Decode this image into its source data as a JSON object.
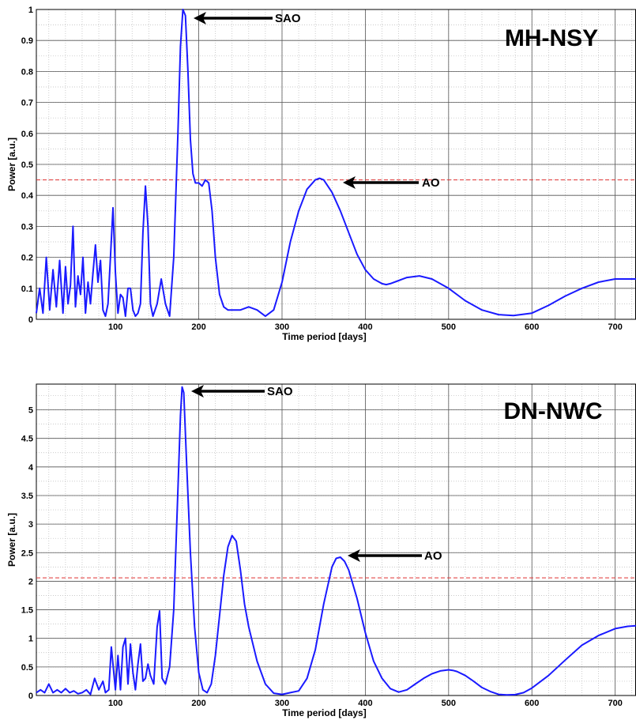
{
  "chart_data": [
    {
      "type": "line",
      "title": "MH-NSY",
      "xlabel": "Time period [days]",
      "ylabel": "Power [a.u.]",
      "xlim": [
        5,
        725
      ],
      "ylim": [
        0,
        1
      ],
      "xticks": [
        100,
        200,
        300,
        400,
        500,
        600,
        700
      ],
      "yticks": [
        0,
        0.1,
        0.2,
        0.3,
        0.4,
        0.5,
        0.6,
        0.7,
        0.8,
        0.9,
        1
      ],
      "ytick_labels": [
        "0",
        "0.1",
        "0.2",
        "0.3",
        "0.4",
        "0.5",
        "0.6",
        "0.7",
        "0.8",
        "0.9",
        "1"
      ],
      "grid": true,
      "threshold": 0.45,
      "colors": {
        "series": "#1a1aff",
        "threshold": "#e03030"
      },
      "series": [
        {
          "x": [
            5,
            9,
            13,
            17,
            21,
            25,
            29,
            33,
            37,
            40,
            43,
            46,
            49,
            52,
            55,
            58,
            61,
            64,
            67,
            70,
            73,
            76,
            79,
            82,
            85,
            88,
            91,
            94,
            97,
            100,
            103,
            106,
            109,
            112,
            115,
            118,
            121,
            124,
            127,
            130,
            133,
            136,
            139,
            142,
            145,
            150,
            155,
            160,
            165,
            170,
            175,
            178,
            181,
            184,
            187,
            190,
            193,
            196,
            200,
            204,
            208,
            212,
            216,
            220,
            225,
            230,
            235,
            240,
            245,
            250,
            260,
            270,
            280,
            290,
            300,
            310,
            320,
            330,
            340,
            345,
            350,
            360,
            370,
            380,
            390,
            400,
            410,
            420,
            425,
            430,
            440,
            450,
            465,
            480,
            500,
            520,
            540,
            560,
            578,
            600,
            620,
            640,
            660,
            680,
            700,
            725
          ],
          "y": [
            0.02,
            0.1,
            0.02,
            0.2,
            0.03,
            0.16,
            0.04,
            0.19,
            0.02,
            0.17,
            0.05,
            0.11,
            0.3,
            0.04,
            0.14,
            0.08,
            0.2,
            0.02,
            0.12,
            0.05,
            0.15,
            0.24,
            0.12,
            0.19,
            0.03,
            0.01,
            0.05,
            0.2,
            0.36,
            0.15,
            0.02,
            0.08,
            0.07,
            0.01,
            0.1,
            0.1,
            0.03,
            0.01,
            0.02,
            0.05,
            0.28,
            0.43,
            0.3,
            0.05,
            0.01,
            0.05,
            0.13,
            0.05,
            0.01,
            0.2,
            0.6,
            0.88,
            1.0,
            0.98,
            0.8,
            0.58,
            0.47,
            0.44,
            0.44,
            0.43,
            0.45,
            0.44,
            0.35,
            0.2,
            0.08,
            0.04,
            0.03,
            0.03,
            0.03,
            0.03,
            0.04,
            0.03,
            0.01,
            0.03,
            0.12,
            0.25,
            0.35,
            0.42,
            0.45,
            0.455,
            0.45,
            0.41,
            0.35,
            0.28,
            0.21,
            0.16,
            0.13,
            0.115,
            0.112,
            0.115,
            0.125,
            0.135,
            0.14,
            0.13,
            0.1,
            0.06,
            0.03,
            0.015,
            0.012,
            0.02,
            0.045,
            0.075,
            0.1,
            0.12,
            0.13,
            0.13
          ]
        }
      ],
      "annotations": [
        {
          "text": "SAO",
          "x": 185,
          "y": 0.98
        },
        {
          "text": "AO",
          "x": 365,
          "y": 0.445
        }
      ]
    },
    {
      "type": "line",
      "title": "DN-NWC",
      "xlabel": "Time period [days]",
      "ylabel": "Power [a.u.]",
      "xlim": [
        5,
        725
      ],
      "ylim": [
        0,
        5.45
      ],
      "xticks": [
        100,
        200,
        300,
        400,
        500,
        600,
        700
      ],
      "yticks": [
        0,
        0.5,
        1,
        1.5,
        2,
        2.5,
        3,
        3.5,
        4,
        4.5,
        5
      ],
      "ytick_labels": [
        "0",
        "0.5",
        "1",
        "1.5",
        "2",
        "2.5",
        "3",
        "3.5",
        "4",
        "4.5",
        "5"
      ],
      "grid": true,
      "threshold": 2.06,
      "colors": {
        "series": "#1a1aff",
        "threshold": "#e03030"
      },
      "series": [
        {
          "x": [
            5,
            10,
            15,
            20,
            25,
            30,
            35,
            40,
            45,
            50,
            55,
            60,
            65,
            70,
            75,
            80,
            85,
            88,
            92,
            95,
            100,
            103,
            106,
            109,
            112,
            115,
            118,
            121,
            124,
            127,
            130,
            133,
            136,
            139,
            142,
            146,
            150,
            153,
            156,
            160,
            165,
            170,
            175,
            178,
            180,
            182,
            185,
            190,
            195,
            200,
            205,
            210,
            215,
            220,
            225,
            230,
            235,
            240,
            245,
            250,
            255,
            260,
            270,
            280,
            290,
            300,
            310,
            320,
            330,
            340,
            350,
            360,
            365,
            370,
            375,
            380,
            390,
            400,
            410,
            420,
            430,
            440,
            450,
            460,
            470,
            480,
            490,
            500,
            505,
            510,
            520,
            530,
            540,
            550,
            560,
            570,
            580,
            590,
            600,
            620,
            640,
            660,
            680,
            700,
            715,
            725
          ],
          "y": [
            0.05,
            0.1,
            0.05,
            0.2,
            0.05,
            0.1,
            0.05,
            0.12,
            0.05,
            0.08,
            0.03,
            0.05,
            0.1,
            0.02,
            0.3,
            0.1,
            0.25,
            0.05,
            0.1,
            0.85,
            0.1,
            0.7,
            0.1,
            0.85,
            1.0,
            0.2,
            0.9,
            0.4,
            0.1,
            0.55,
            0.9,
            0.25,
            0.3,
            0.55,
            0.35,
            0.2,
            1.2,
            1.48,
            0.3,
            0.2,
            0.5,
            1.5,
            3.6,
            4.9,
            5.4,
            5.3,
            4.2,
            2.5,
            1.2,
            0.4,
            0.1,
            0.05,
            0.2,
            0.7,
            1.4,
            2.1,
            2.6,
            2.8,
            2.7,
            2.2,
            1.6,
            1.2,
            0.6,
            0.2,
            0.04,
            0.02,
            0.05,
            0.08,
            0.3,
            0.8,
            1.6,
            2.25,
            2.4,
            2.42,
            2.35,
            2.2,
            1.7,
            1.1,
            0.6,
            0.3,
            0.12,
            0.06,
            0.1,
            0.2,
            0.3,
            0.38,
            0.43,
            0.45,
            0.44,
            0.42,
            0.35,
            0.25,
            0.14,
            0.07,
            0.02,
            0.01,
            0.015,
            0.05,
            0.13,
            0.35,
            0.62,
            0.88,
            1.05,
            1.17,
            1.21,
            1.22
          ]
        }
      ],
      "annotations": [
        {
          "text": "SAO",
          "x": 184,
          "y": 5.32
        },
        {
          "text": "AO",
          "x": 372,
          "y": 2.42
        }
      ]
    }
  ]
}
